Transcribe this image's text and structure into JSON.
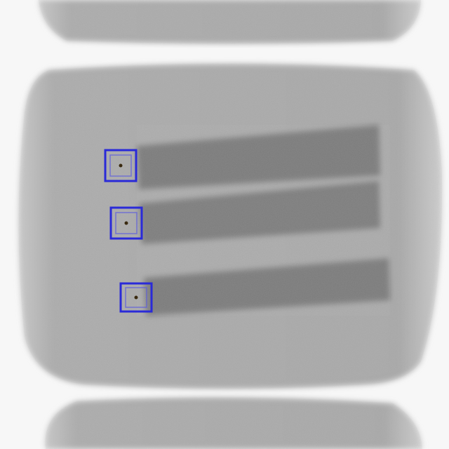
{
  "image": {
    "kind": "grayscale x-ray radiograph",
    "detections_count": 3,
    "colors": {
      "background": "#f7f7f7",
      "battery_body": "#a9a9a9",
      "battery_body_edge": "#bdbdbd",
      "electrode_strip": "#7c7c7c",
      "marker_outline": "#2a2ad8",
      "marker_center": "#3a2a10"
    }
  }
}
